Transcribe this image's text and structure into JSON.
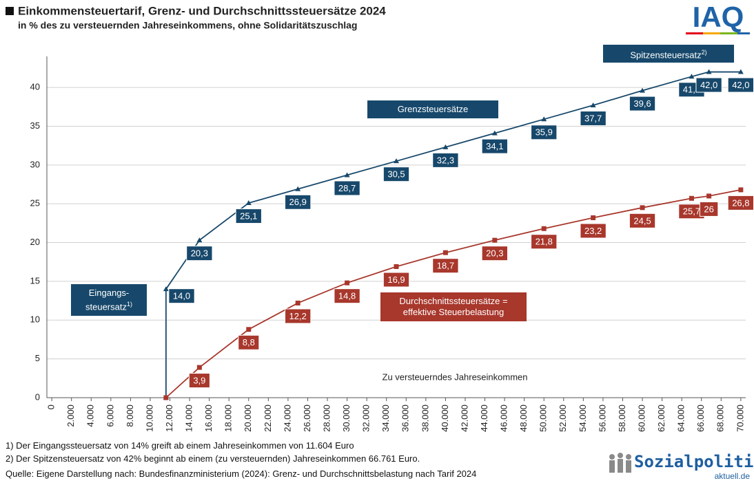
{
  "chart_data": {
    "type": "line",
    "title": "Einkommensteuertarif, Grenz- und Durchschnittssteuersätze 2024",
    "subtitle": "in % des zu versteuernden Jahreseinkommens, ohne Solidaritätszuschlag",
    "x_label": "Zu versteuerndes Jahreseinkommen",
    "xlim": [
      -500,
      70500
    ],
    "ylim": [
      0,
      44
    ],
    "xticks": [
      0,
      {
        "value": 2000,
        "label": "2.000"
      },
      {
        "value": 4000,
        "label": "4.000"
      },
      {
        "value": 6000,
        "label": "6.000"
      },
      {
        "value": 8000,
        "label": "8.000"
      },
      {
        "value": 10000,
        "label": "10.000"
      },
      {
        "value": 12000,
        "label": "12.000"
      },
      {
        "value": 14000,
        "label": "14.000"
      },
      {
        "value": 16000,
        "label": "16.000"
      },
      {
        "value": 18000,
        "label": "18.000"
      },
      {
        "value": 20000,
        "label": "20.000"
      },
      {
        "value": 22000,
        "label": "22.000"
      },
      {
        "value": 24000,
        "label": "24.000"
      },
      {
        "value": 26000,
        "label": "26.000"
      },
      {
        "value": 28000,
        "label": "28.000"
      },
      {
        "value": 30000,
        "label": "30.000"
      },
      {
        "value": 32000,
        "label": "32.000"
      },
      {
        "value": 34000,
        "label": "34.000"
      },
      {
        "value": 36000,
        "label": "36.000"
      },
      {
        "value": 38000,
        "label": "38.000"
      },
      {
        "value": 40000,
        "label": "40.000"
      },
      {
        "value": 42000,
        "label": "42.000"
      },
      {
        "value": 44000,
        "label": "44.000"
      },
      {
        "value": 46000,
        "label": "46.000"
      },
      {
        "value": 48000,
        "label": "48.000"
      },
      {
        "value": 50000,
        "label": "50.000"
      },
      {
        "value": 52000,
        "label": "52.000"
      },
      {
        "value": 54000,
        "label": "54.000"
      },
      {
        "value": 56000,
        "label": "56.000"
      },
      {
        "value": 58000,
        "label": "58.000"
      },
      {
        "value": 60000,
        "label": "60.000"
      },
      {
        "value": 62000,
        "label": "62.000"
      },
      {
        "value": 64000,
        "label": "64.000"
      },
      {
        "value": 66000,
        "label": "66.000"
      },
      {
        "value": 68000,
        "label": "68.000"
      },
      {
        "value": 70000,
        "label": "70.000"
      }
    ],
    "yticks": [
      0,
      5,
      10,
      15,
      20,
      25,
      30,
      35,
      40
    ],
    "grid": true,
    "series": [
      {
        "name": "Grenzsteuersätze",
        "color": "#17486b",
        "marker": "triangle",
        "x": [
          11604,
          11604,
          15000,
          20000,
          25000,
          30000,
          35000,
          40000,
          45000,
          50000,
          55000,
          60000,
          65000,
          66761,
          70000
        ],
        "values": [
          0,
          14.0,
          20.3,
          25.1,
          26.9,
          28.7,
          30.5,
          32.3,
          34.1,
          35.9,
          37.7,
          39.6,
          41.4,
          42.0,
          42.0
        ],
        "value_labels": [
          null,
          "14,0",
          "20,3",
          "25,1",
          "26,9",
          "28,7",
          "30,5",
          "32,3",
          "34,1",
          "35,9",
          "37,7",
          "39,6",
          "41,4",
          "42,0",
          "42,0"
        ]
      },
      {
        "name": "Durchschnittssteuersätze = effektive Steuerbelastung",
        "color": "#a8372c",
        "marker": "square",
        "x": [
          11604,
          15000,
          20000,
          25000,
          30000,
          35000,
          40000,
          45000,
          50000,
          55000,
          60000,
          65000,
          66761,
          70000
        ],
        "values": [
          0,
          3.9,
          8.8,
          12.2,
          14.8,
          16.9,
          18.7,
          20.3,
          21.8,
          23.2,
          24.5,
          25.7,
          26,
          26.8
        ],
        "value_labels": [
          null,
          "3,9",
          "8,8",
          "12,2",
          "14,8",
          "16,9",
          "18,7",
          "20,3",
          "21,8",
          "23,2",
          "24,5",
          "25,7",
          "26",
          "26,8"
        ]
      }
    ],
    "annotations": [
      {
        "text": "Eingangs-steuersatz",
        "sup": "1)"
      },
      {
        "text": "Spitzensteuersatz",
        "sup": "2)"
      }
    ]
  },
  "footnotes": [
    "1) Der Eingangssteuersatz von 14% greift ab einem Jahreseinkommen von  11.604 Euro",
    "2) Der Spitzensteuersatz von 42%  beginnt ab einem (zu versteuernden) Jahreseinkommen 66.761 Euro."
  ],
  "source": "Quelle: Eigene Darstellung nach: Bundesfinanzministerium (2024): Grenz- und Durchschnittsbelastung nach Tarif 2024",
  "logos": {
    "iaq": "IAQ",
    "sozialpolitik": "Sozialpolitik-",
    "domain": "aktuell.de"
  }
}
